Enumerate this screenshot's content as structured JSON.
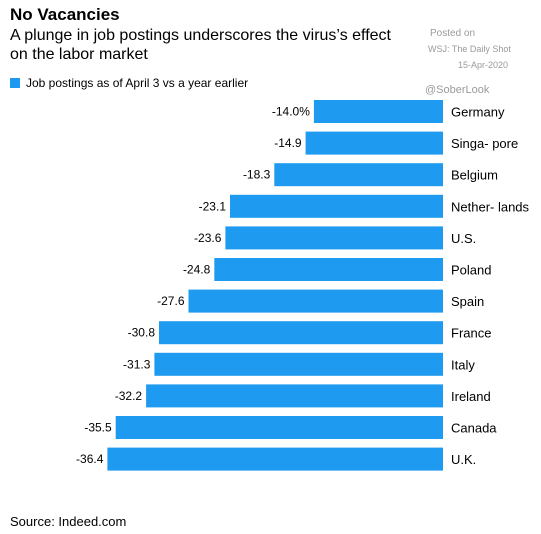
{
  "header": {
    "title": "No Vacancies",
    "subtitle": "A plunge in job postings underscores the virus’s effect on the labor market"
  },
  "watermark": {
    "line1": "Posted on",
    "line2": "WSJ: The Daily Shot",
    "line3": "15-Apr-2020",
    "handle": "@SoberLook"
  },
  "footer": {
    "source": "Source: Indeed.com"
  },
  "colors": {
    "bar": "#1e9bf0"
  },
  "chart_data": {
    "type": "bar",
    "orientation": "horizontal",
    "legend": {
      "label": "Job postings as of April 3 vs a year earlier",
      "position": "top-left"
    },
    "categories": [
      "Germany",
      "Singa- pore",
      "Belgium",
      "Nether- lands",
      "U.S.",
      "Poland",
      "Spain",
      "France",
      "Italy",
      "Ireland",
      "Canada",
      "U.K."
    ],
    "values": [
      -14.0,
      -14.9,
      -18.3,
      -23.1,
      -23.6,
      -24.8,
      -27.6,
      -30.8,
      -31.3,
      -32.2,
      -35.5,
      -36.4
    ],
    "value_labels": [
      "-14.0%",
      "-14.9",
      "-18.3",
      "-23.1",
      "-23.6",
      "-24.8",
      "-27.6",
      "-30.8",
      "-31.3",
      "-32.2",
      "-35.5",
      "-36.4"
    ],
    "xlim": [
      -40,
      0
    ],
    "grid": false
  }
}
